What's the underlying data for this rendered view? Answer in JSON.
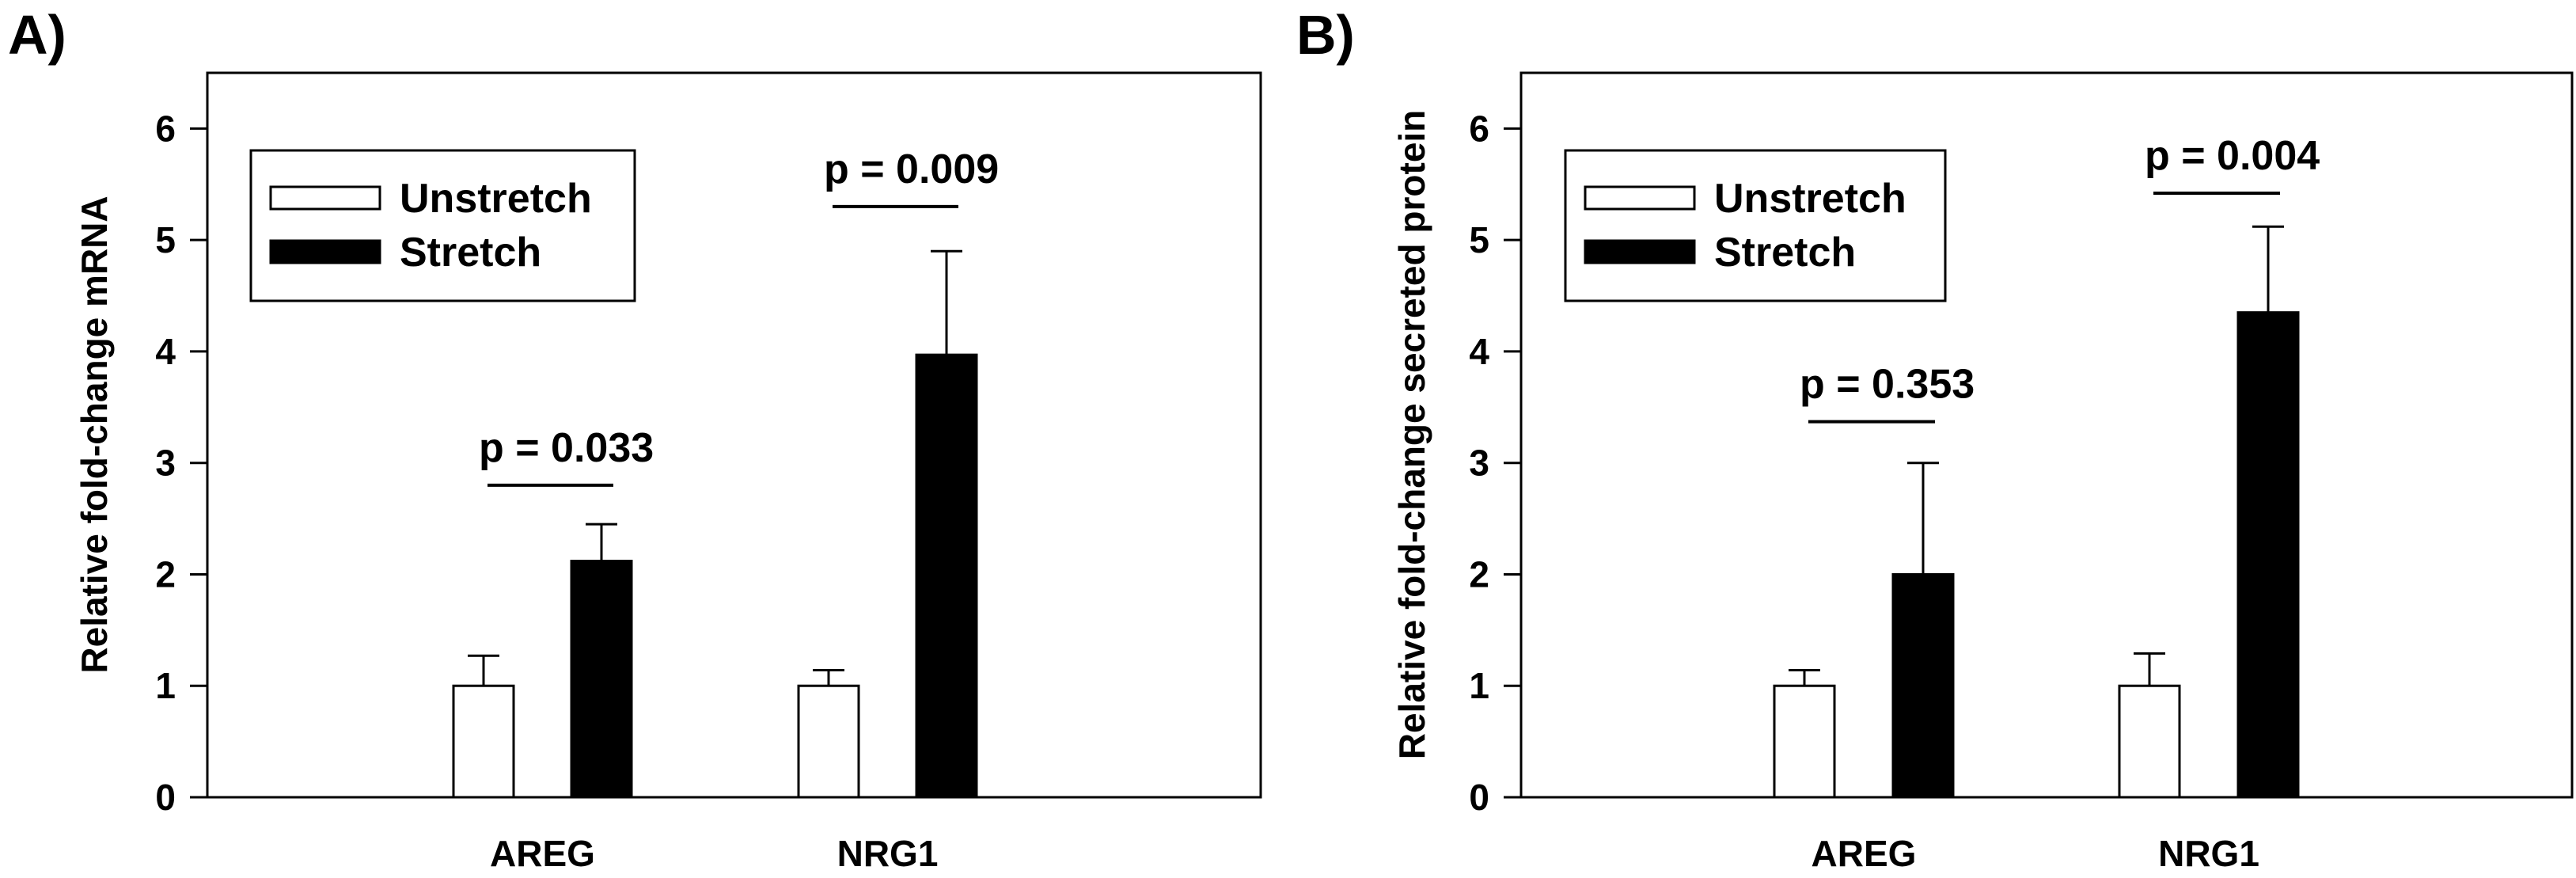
{
  "figure": {
    "panels": [
      {
        "letter": "A)",
        "ylabel": "Relative fold-change mRNA",
        "legend": {
          "items": [
            "Unstretch",
            "Stretch"
          ],
          "placement": "top-left"
        }
      },
      {
        "letter": "B)",
        "ylabel": "Relative fold-change secreted protein",
        "legend": {
          "items": [
            "Unstretch",
            "Stretch"
          ],
          "placement": "top-left"
        }
      }
    ]
  },
  "chart_data": [
    {
      "type": "bar",
      "panel": "A)",
      "title": "",
      "xlabel": "",
      "ylabel": "Relative fold-change mRNA",
      "categories": [
        "AREG",
        "NRG1"
      ],
      "ylim": [
        0,
        6.5
      ],
      "yticks": [
        0,
        1,
        2,
        3,
        4,
        5,
        6
      ],
      "grid": false,
      "legend_placement": "top-left",
      "series": [
        {
          "name": "Unstretch",
          "values": [
            1.0,
            1.0
          ],
          "errors": [
            0.27,
            0.14
          ],
          "color": "#ffffff"
        },
        {
          "name": "Stretch",
          "values": [
            2.12,
            3.97
          ],
          "errors": [
            0.33,
            0.93
          ],
          "color": "#000000"
        }
      ],
      "annotations": [
        {
          "text": "p = 0.033",
          "category": "AREG",
          "y": 2.8
        },
        {
          "text": "p = 0.009",
          "category": "NRG1",
          "y": 5.3
        }
      ]
    },
    {
      "type": "bar",
      "panel": "B)",
      "title": "",
      "xlabel": "",
      "ylabel": "Relative fold-change secreted protein",
      "categories": [
        "AREG",
        "NRG1"
      ],
      "ylim": [
        0,
        6.5
      ],
      "yticks": [
        0,
        1,
        2,
        3,
        4,
        5,
        6
      ],
      "grid": false,
      "legend_placement": "top-left",
      "series": [
        {
          "name": "Unstretch",
          "values": [
            1.0,
            1.0
          ],
          "errors": [
            0.14,
            0.29
          ],
          "color": "#ffffff"
        },
        {
          "name": "Stretch",
          "values": [
            2.0,
            4.35
          ],
          "errors": [
            1.0,
            0.77
          ],
          "color": "#000000"
        }
      ],
      "annotations": [
        {
          "text": "p = 0.353",
          "category": "AREG",
          "y": 3.37
        },
        {
          "text": "p = 0.004",
          "category": "NRG1",
          "y": 5.42
        }
      ]
    }
  ]
}
